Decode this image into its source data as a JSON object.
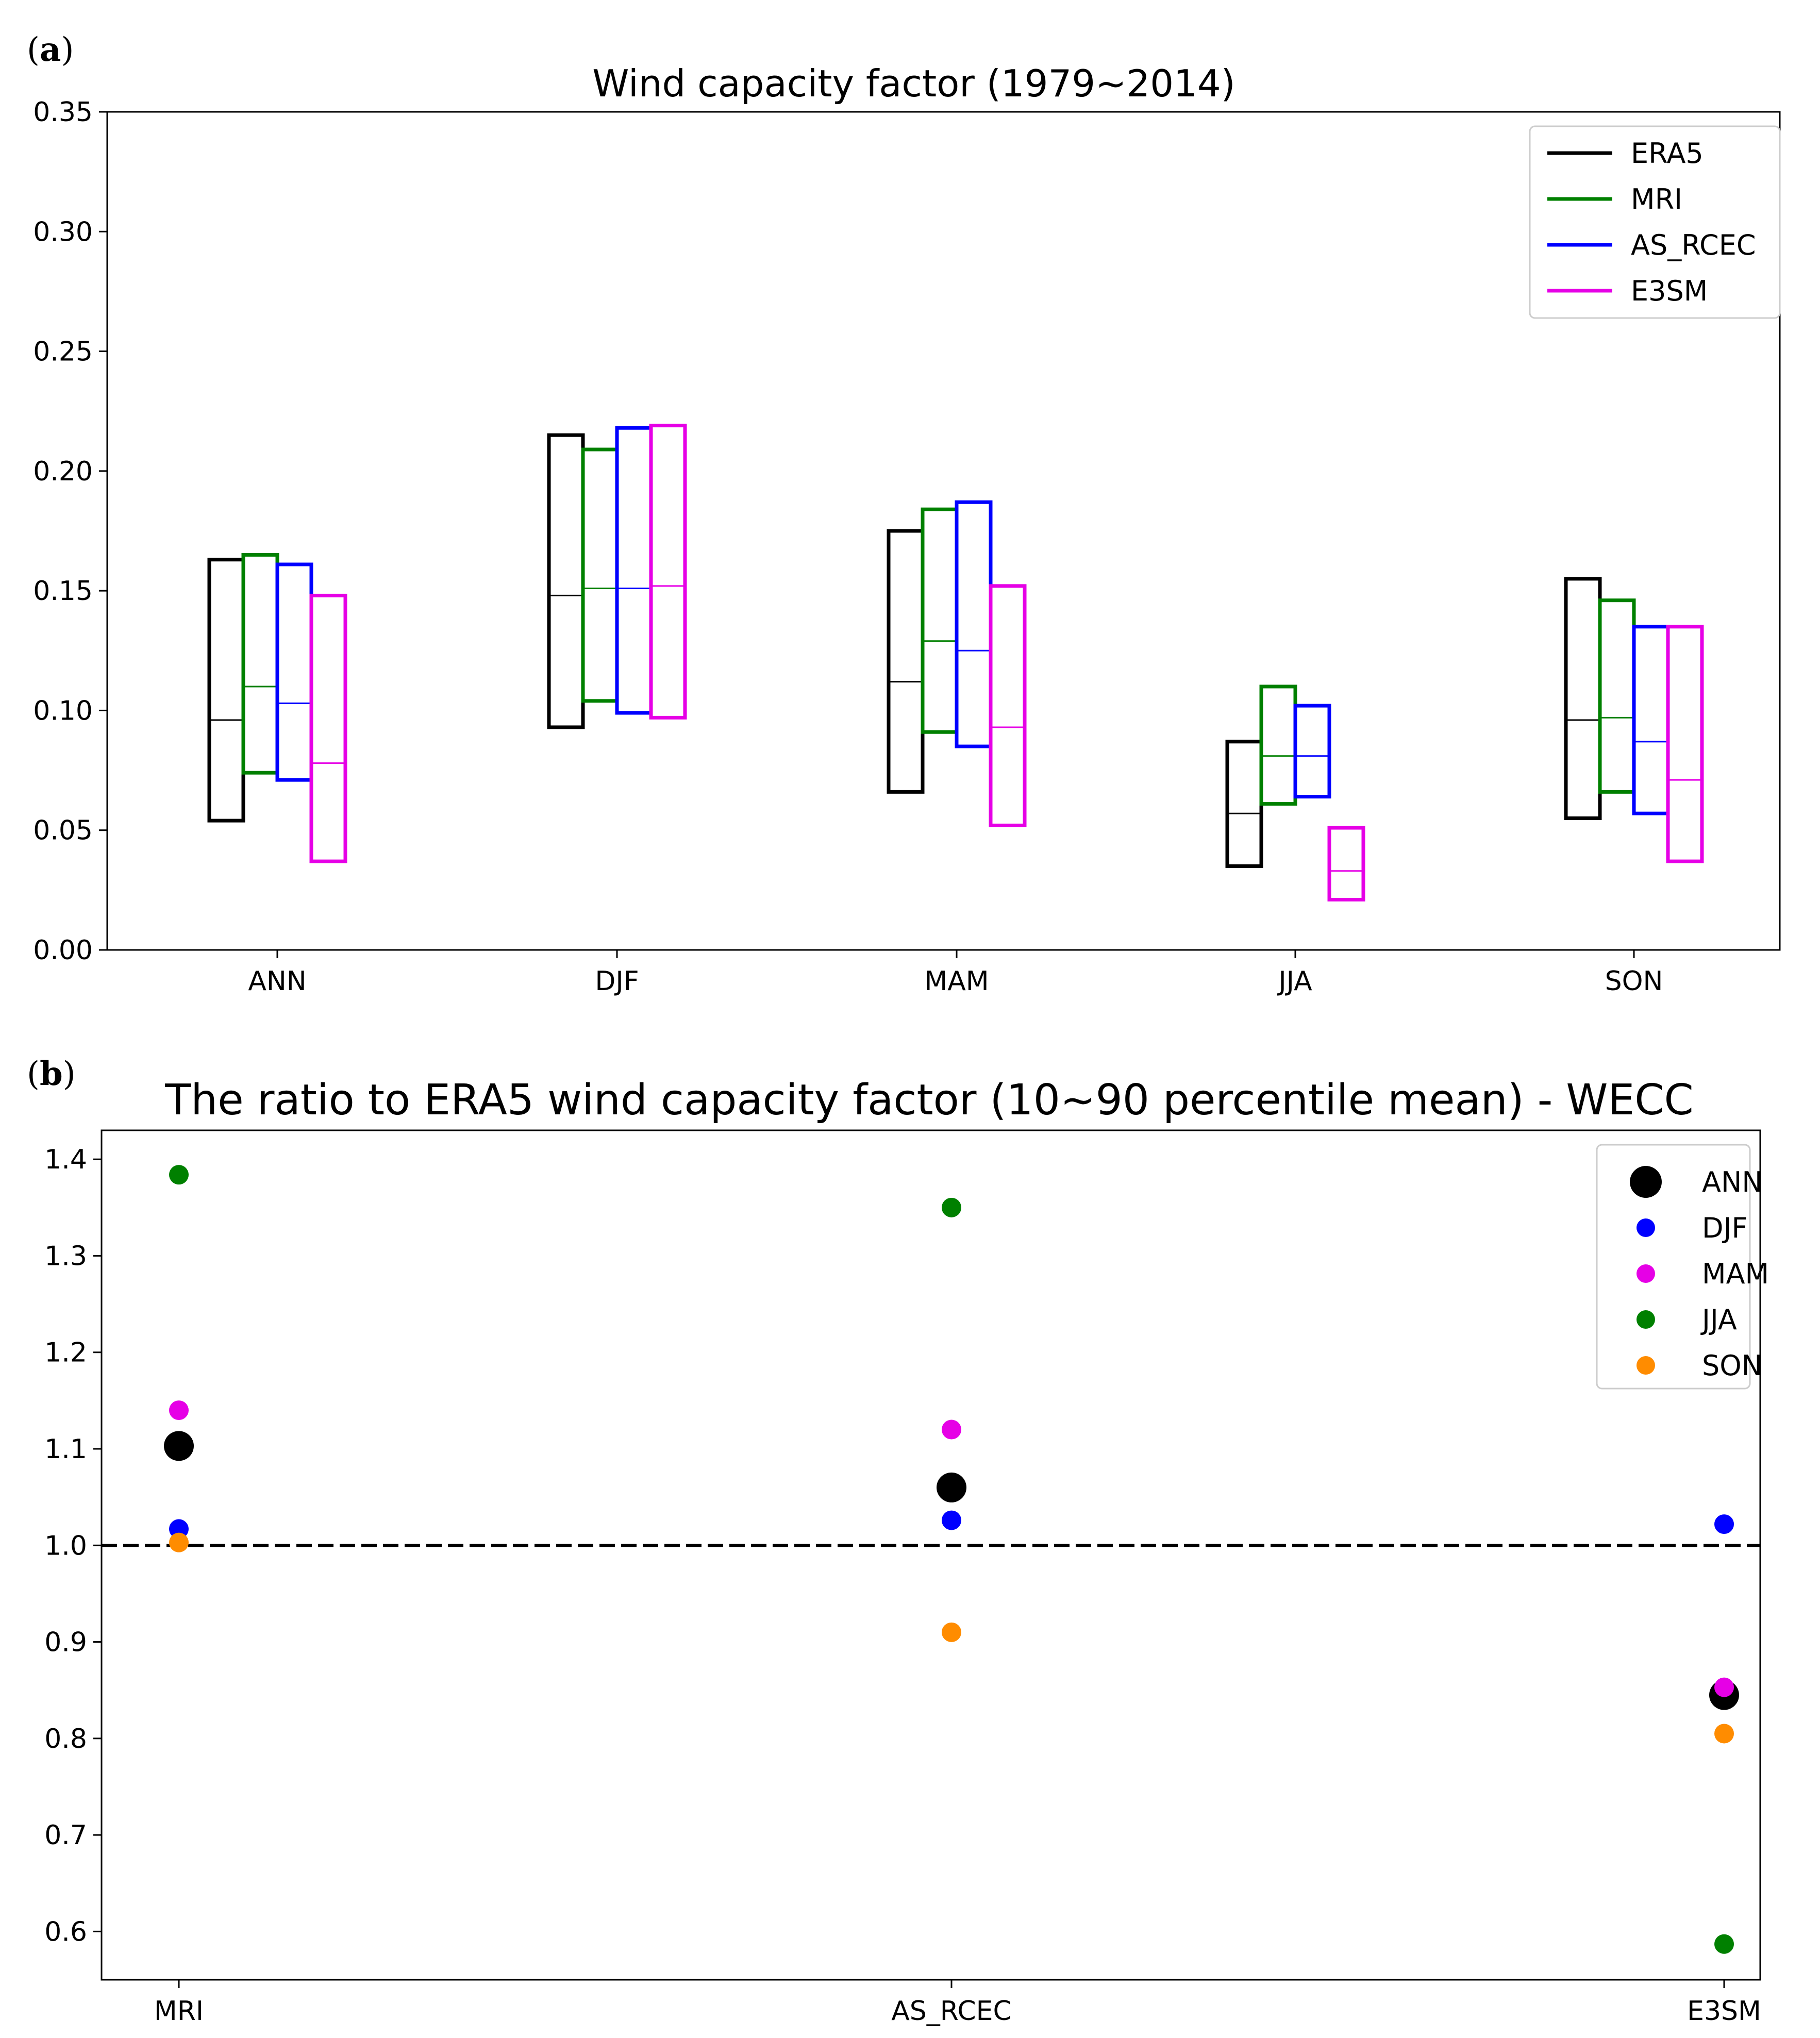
{
  "panel_a": {
    "label_open": "(",
    "label_letter": "a",
    "label_close": ")"
  },
  "panel_b": {
    "label_open": "(",
    "label_letter": "b",
    "label_close": ")"
  },
  "colors": {
    "ERA5": "#000000",
    "MRI": "#008000",
    "AS_RCEC": "#0000ff",
    "E3SM": "#e600e6",
    "ANN": "#000000",
    "DJF": "#0000ff",
    "MAM": "#e600e6",
    "JJA": "#008000",
    "SON": "#ff8c00"
  },
  "chart_data": [
    {
      "type": "box",
      "title": "Wind capacity factor (1979~2014)",
      "xlabel": "",
      "ylabel": "",
      "ylim": [
        0,
        0.35
      ],
      "yticks": [
        "0.00",
        "0.05",
        "0.10",
        "0.15",
        "0.20",
        "0.25",
        "0.30",
        "0.35"
      ],
      "categories": [
        "ANN",
        "DJF",
        "MAM",
        "JJA",
        "SON"
      ],
      "legend": [
        "ERA5",
        "MRI",
        "AS_RCEC",
        "E3SM"
      ],
      "legend_position": "top-right",
      "series": [
        {
          "name": "ERA5",
          "boxes": [
            [
              0.054,
              0.096,
              0.163
            ],
            [
              0.093,
              0.148,
              0.215
            ],
            [
              0.066,
              0.112,
              0.175
            ],
            [
              0.035,
              0.057,
              0.087
            ],
            [
              0.055,
              0.096,
              0.155
            ]
          ]
        },
        {
          "name": "MRI",
          "boxes": [
            [
              0.074,
              0.11,
              0.165
            ],
            [
              0.104,
              0.151,
              0.209
            ],
            [
              0.091,
              0.129,
              0.184
            ],
            [
              0.061,
              0.081,
              0.11
            ],
            [
              0.066,
              0.097,
              0.146
            ]
          ]
        },
        {
          "name": "AS_RCEC",
          "boxes": [
            [
              0.071,
              0.103,
              0.161
            ],
            [
              0.099,
              0.151,
              0.218
            ],
            [
              0.085,
              0.125,
              0.187
            ],
            [
              0.064,
              0.081,
              0.102
            ],
            [
              0.057,
              0.087,
              0.135
            ]
          ]
        },
        {
          "name": "E3SM",
          "boxes": [
            [
              0.037,
              0.078,
              0.148
            ],
            [
              0.097,
              0.152,
              0.219
            ],
            [
              0.052,
              0.093,
              0.152
            ],
            [
              0.021,
              0.033,
              0.051
            ],
            [
              0.037,
              0.071,
              0.135
            ]
          ]
        }
      ]
    },
    {
      "type": "scatter",
      "title": "The ratio to ERA5 wind capacity factor (10~90 percentile mean) - WECC",
      "xlabel": "",
      "ylabel": "",
      "ylim": [
        0.55,
        1.43
      ],
      "yticks": [
        "0.6",
        "0.7",
        "0.8",
        "0.9",
        "1.0",
        "1.1",
        "1.2",
        "1.3",
        "1.4"
      ],
      "categories": [
        "MRI",
        "AS_RCEC",
        "E3SM"
      ],
      "reference_line": 1.0,
      "legend": [
        "ANN",
        "DJF",
        "MAM",
        "JJA",
        "SON"
      ],
      "legend_position": "top-right",
      "series": [
        {
          "name": "ANN",
          "values": [
            1.103,
            1.06,
            0.845
          ]
        },
        {
          "name": "DJF",
          "values": [
            1.017,
            1.026,
            1.022
          ]
        },
        {
          "name": "MAM",
          "values": [
            1.14,
            1.12,
            0.853
          ]
        },
        {
          "name": "JJA",
          "values": [
            1.384,
            1.35,
            0.587
          ]
        },
        {
          "name": "SON",
          "values": [
            1.003,
            0.91,
            0.805
          ]
        }
      ]
    }
  ]
}
